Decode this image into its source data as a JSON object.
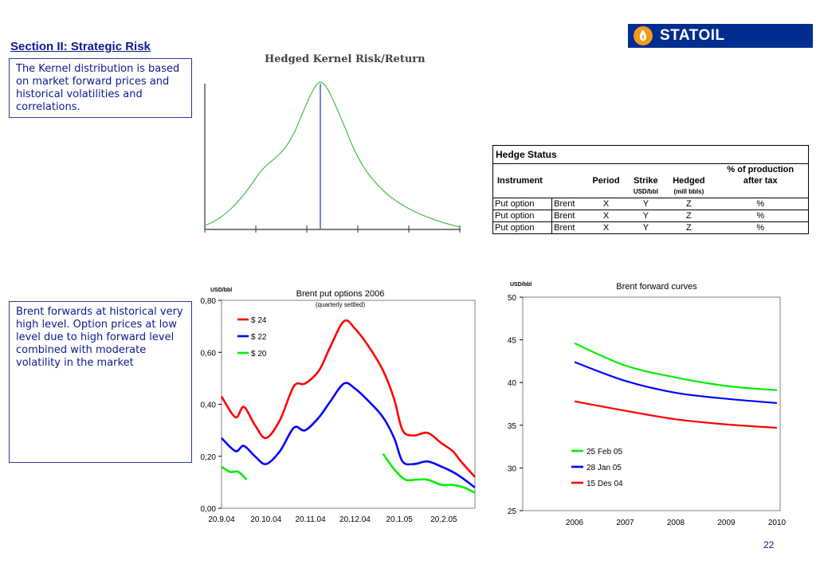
{
  "slide": {
    "section_title": "Section II: Strategic Risk",
    "kernel_text": "The Kernel distribution is based on market forward prices and historical volatilities and correlations.",
    "forwards_text": "Brent forwards at historical very high level. Option prices at low level due to high forward level combined with moderate volatility in the market",
    "logo_text": "STATOIL",
    "page_number": "22"
  },
  "kernel": {
    "title": "Hedged Kernel Risk/Return"
  },
  "hedge_status": {
    "title": "Hedge Status",
    "headers": {
      "instrument": "Instrument",
      "period": "Period",
      "strike": "Strike",
      "strike_unit": "USD/bbl",
      "hedged": "Hedged",
      "hedged_unit": "(mill bbls)",
      "pct_line1": "% of production",
      "pct_line2": "after tax"
    },
    "rows": [
      {
        "instrument": "Put option",
        "asset": "Brent",
        "period": "X",
        "strike": "Y",
        "hedged": "Z",
        "pct": "%"
      },
      {
        "instrument": "Put option",
        "asset": "Brent",
        "period": "X",
        "strike": "Y",
        "hedged": "Z",
        "pct": "%"
      },
      {
        "instrument": "Put option",
        "asset": "Brent",
        "period": "X",
        "strike": "Y",
        "hedged": "Z",
        "pct": "%"
      }
    ]
  },
  "chart_data": [
    {
      "type": "line",
      "title": "Brent put options 2006",
      "subtitle": "(quarterly settled)",
      "ylabel": "USD/bbl",
      "ylim": [
        0,
        0.8
      ],
      "yticks": [
        "0,00",
        "0,20",
        "0,40",
        "0,60",
        "0,80"
      ],
      "xticks": [
        "20.9.04",
        "20.10.04",
        "20.11.04",
        "20.12.04",
        "20.1.05",
        "20.2.05"
      ],
      "legend_position": "top-left",
      "grid": false,
      "colors": [
        "#ff0000",
        "#0000ff",
        "#00ee00"
      ],
      "series": [
        {
          "name": "$ 24",
          "color": "#ff0000",
          "points": [
            [
              0,
              0.43
            ],
            [
              5,
              0.35
            ],
            [
              8,
              0.39
            ],
            [
              12,
              0.32
            ],
            [
              16,
              0.27
            ],
            [
              21,
              0.34
            ],
            [
              26,
              0.47
            ],
            [
              30,
              0.48
            ],
            [
              35,
              0.53
            ],
            [
              39,
              0.62
            ],
            [
              44,
              0.72
            ],
            [
              48,
              0.69
            ],
            [
              53,
              0.62
            ],
            [
              58,
              0.53
            ],
            [
              62,
              0.42
            ],
            [
              65,
              0.3
            ],
            [
              69,
              0.28
            ],
            [
              74,
              0.29
            ],
            [
              79,
              0.25
            ],
            [
              83,
              0.22
            ],
            [
              86,
              0.18
            ],
            [
              91,
              0.12
            ]
          ]
        },
        {
          "name": "$ 22",
          "color": "#0000ff",
          "points": [
            [
              0,
              0.27
            ],
            [
              5,
              0.22
            ],
            [
              8,
              0.24
            ],
            [
              12,
              0.2
            ],
            [
              16,
              0.17
            ],
            [
              21,
              0.22
            ],
            [
              26,
              0.31
            ],
            [
              30,
              0.3
            ],
            [
              35,
              0.35
            ],
            [
              39,
              0.41
            ],
            [
              44,
              0.48
            ],
            [
              48,
              0.46
            ],
            [
              53,
              0.41
            ],
            [
              58,
              0.35
            ],
            [
              62,
              0.27
            ],
            [
              65,
              0.18
            ],
            [
              69,
              0.17
            ],
            [
              74,
              0.18
            ],
            [
              79,
              0.16
            ],
            [
              83,
              0.14
            ],
            [
              86,
              0.12
            ],
            [
              91,
              0.08
            ]
          ]
        },
        {
          "name": "$ 20",
          "color": "#00ee00",
          "points": [
            [
              0,
              0.16
            ],
            [
              3,
              0.14
            ],
            [
              6,
              0.14
            ],
            [
              9,
              0.11
            ]
          ],
          "points2": [
            [
              58,
              0.21
            ],
            [
              62,
              0.15
            ],
            [
              66,
              0.11
            ],
            [
              70,
              0.11
            ],
            [
              74,
              0.11
            ],
            [
              79,
              0.09
            ],
            [
              83,
              0.09
            ],
            [
              87,
              0.08
            ],
            [
              91,
              0.06
            ]
          ]
        }
      ]
    },
    {
      "type": "line",
      "title": "Brent forward curves",
      "ylabel": "USD/bbl",
      "ylim": [
        25,
        50
      ],
      "yticks": [
        "25",
        "30",
        "35",
        "40",
        "45",
        "50"
      ],
      "xticks": [
        "2006",
        "2007",
        "2008",
        "2009",
        "2010"
      ],
      "legend_position": "bottom-left",
      "grid": false,
      "series": [
        {
          "name": "25 Feb 05",
          "color": "#00ee00",
          "points": [
            [
              2006,
              44.6
            ],
            [
              2007,
              42.0
            ],
            [
              2008,
              40.6
            ],
            [
              2009,
              39.6
            ],
            [
              2010,
              39.1
            ]
          ]
        },
        {
          "name": "28 Jan 05",
          "color": "#0000ff",
          "points": [
            [
              2006,
              42.4
            ],
            [
              2007,
              40.2
            ],
            [
              2008,
              38.8
            ],
            [
              2009,
              38.1
            ],
            [
              2010,
              37.6
            ]
          ]
        },
        {
          "name": "15 Des 04",
          "color": "#ff0000",
          "points": [
            [
              2006,
              37.8
            ],
            [
              2007,
              36.7
            ],
            [
              2008,
              35.7
            ],
            [
              2009,
              35.1
            ],
            [
              2010,
              34.7
            ]
          ]
        }
      ]
    }
  ]
}
